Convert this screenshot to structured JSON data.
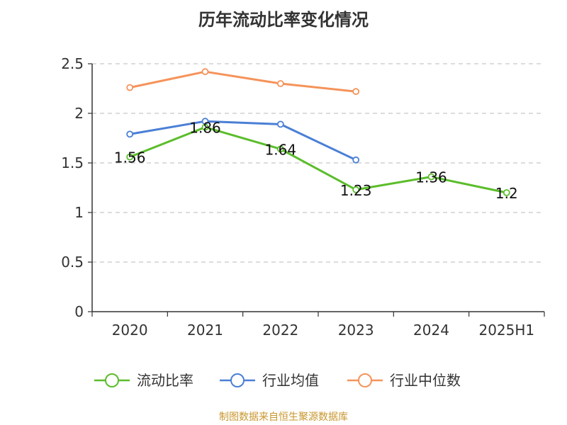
{
  "title": "历年流动比率变化情况",
  "source": "制图数据来自恒生聚源数据库",
  "chart_data": {
    "type": "line",
    "title": "历年流动比率变化情况",
    "xlabel": "",
    "ylabel": "",
    "categories": [
      "2020",
      "2021",
      "2022",
      "2023",
      "2024",
      "2025H1"
    ],
    "ylim": [
      0,
      2.5
    ],
    "yticks": [
      "0",
      "0.5",
      "1",
      "1.5",
      "2",
      "2.5"
    ],
    "grid": true,
    "legend_position": "bottom",
    "series": [
      {
        "name": "流动比率",
        "color": "#5bbd2b",
        "values": [
          1.56,
          1.86,
          1.64,
          1.23,
          1.36,
          1.2
        ],
        "labels": [
          "1.56",
          "1.86",
          "1.64",
          "1.23",
          "1.36",
          "1.2"
        ]
      },
      {
        "name": "行业均值",
        "color": "#4a7fd6",
        "values": [
          1.79,
          1.92,
          1.89,
          1.53,
          null,
          null
        ]
      },
      {
        "name": "行业中位数",
        "color": "#f5935a",
        "values": [
          2.26,
          2.42,
          2.3,
          2.22,
          null,
          null
        ]
      }
    ]
  }
}
